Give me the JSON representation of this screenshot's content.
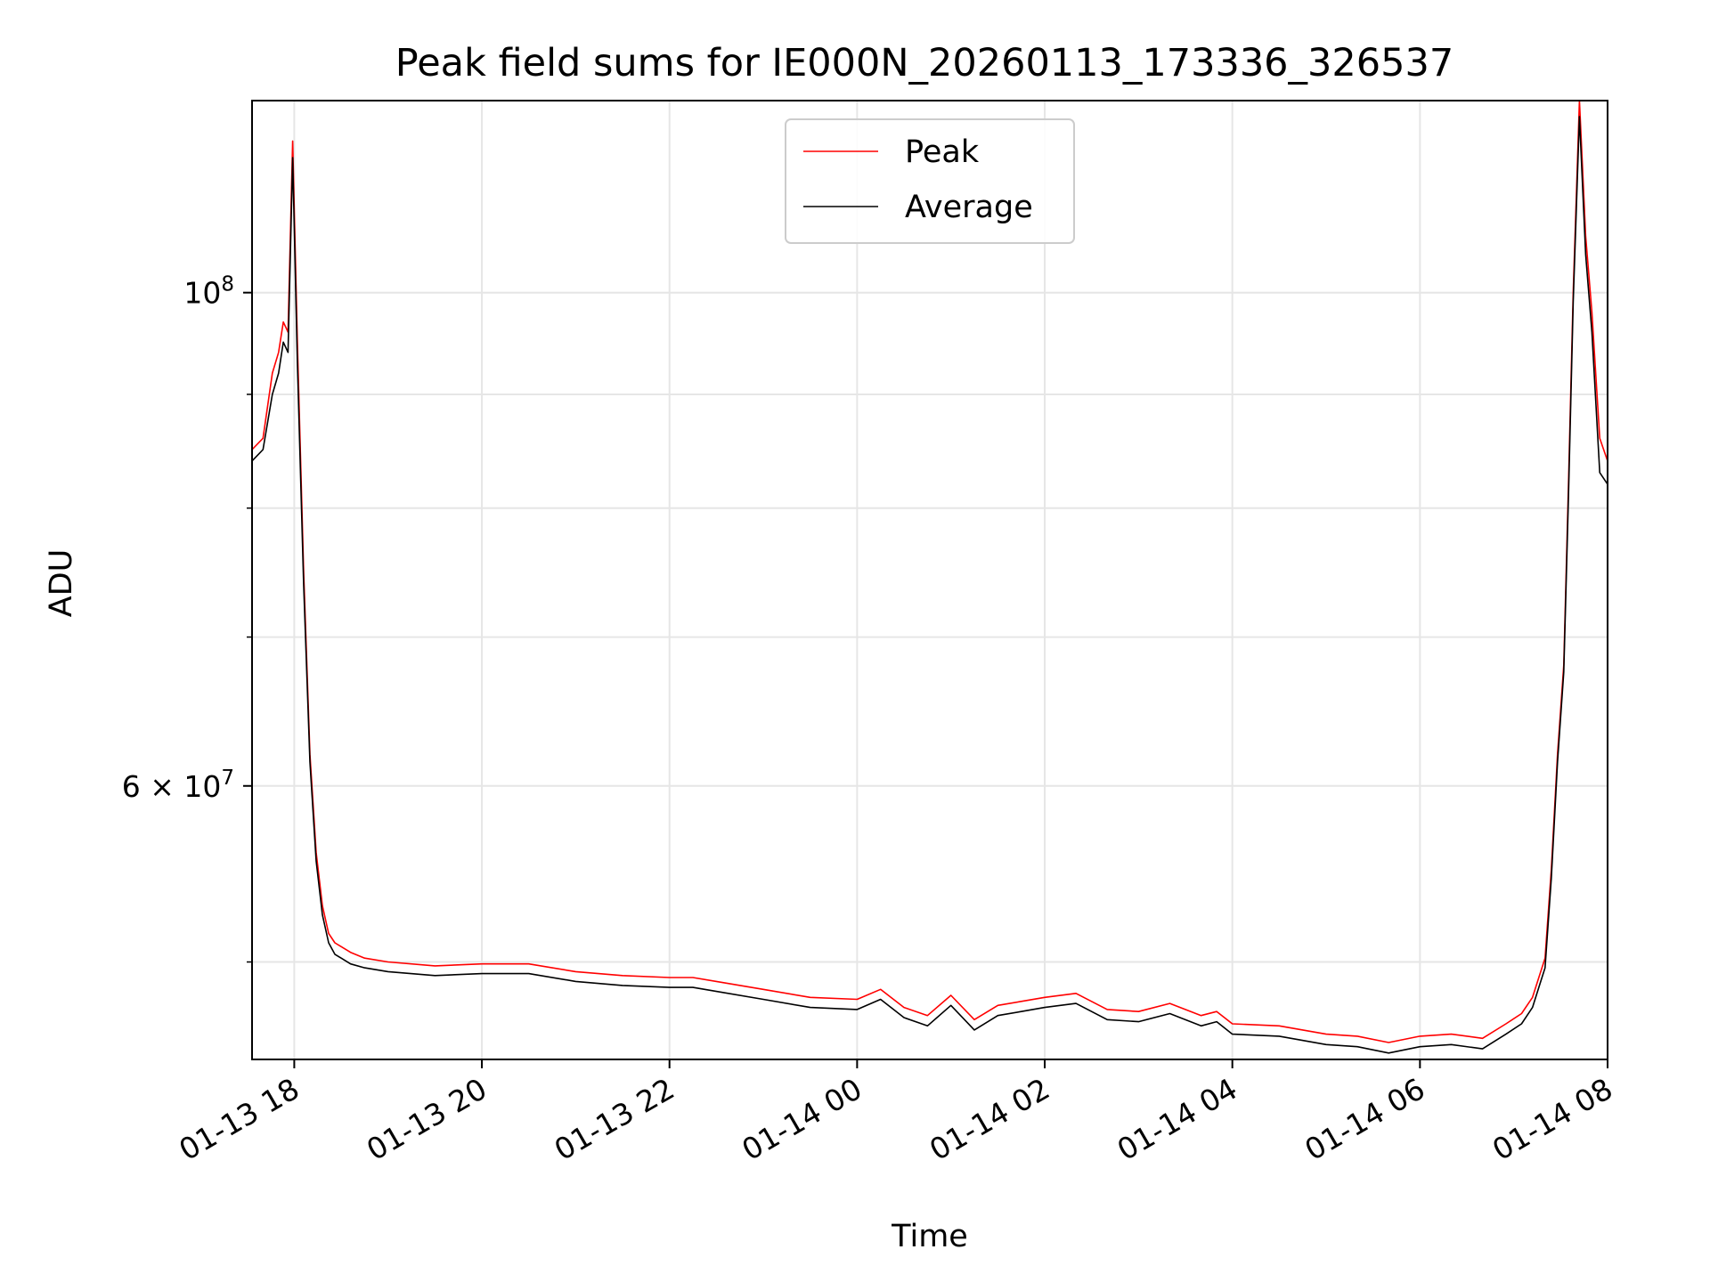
{
  "chart_data": {
    "type": "line",
    "title": "Peak field sums for IE000N_20260113_173336_326537",
    "xlabel": "Time",
    "ylabel": "ADU",
    "yscale": "log",
    "grid": true,
    "legend_position": "top-center",
    "xlim": [
      "2026-01-13 17:33",
      "2026-01-14 08:00"
    ],
    "ylim": [
      45200000,
      122000000
    ],
    "xticks": [
      {
        "value": "2026-01-13 18:00",
        "label": "01-13 18"
      },
      {
        "value": "2026-01-13 20:00",
        "label": "01-13 20"
      },
      {
        "value": "2026-01-13 22:00",
        "label": "01-13 22"
      },
      {
        "value": "2026-01-14 00:00",
        "label": "01-14 00"
      },
      {
        "value": "2026-01-14 02:00",
        "label": "01-14 02"
      },
      {
        "value": "2026-01-14 04:00",
        "label": "01-14 04"
      },
      {
        "value": "2026-01-14 06:00",
        "label": "01-14 06"
      },
      {
        "value": "2026-01-14 08:00",
        "label": "01-14 08"
      }
    ],
    "yticks_major": [
      {
        "value": 100000000,
        "base": "10",
        "exp": "8"
      },
      {
        "value": 60000000,
        "base": "6 × 10",
        "exp": "7"
      }
    ],
    "yticks_minor": [
      50000000,
      70000000,
      80000000,
      90000000
    ],
    "series": [
      {
        "name": "Peak",
        "color": "#ff0000",
        "x": [
          "2026-01-13 17:33",
          "2026-01-13 17:40",
          "2026-01-13 17:46",
          "2026-01-13 17:50",
          "2026-01-13 17:53",
          "2026-01-13 17:56",
          "2026-01-13 17:59",
          "2026-01-13 18:02",
          "2026-01-13 18:06",
          "2026-01-13 18:10",
          "2026-01-13 18:14",
          "2026-01-13 18:18",
          "2026-01-13 18:22",
          "2026-01-13 18:26",
          "2026-01-13 18:30",
          "2026-01-13 18:36",
          "2026-01-13 18:45",
          "2026-01-13 19:00",
          "2026-01-13 19:30",
          "2026-01-13 20:00",
          "2026-01-13 20:30",
          "2026-01-13 21:00",
          "2026-01-13 21:30",
          "2026-01-13 22:00",
          "2026-01-13 22:15",
          "2026-01-13 22:30",
          "2026-01-13 23:00",
          "2026-01-13 23:30",
          "2026-01-14 00:00",
          "2026-01-14 00:15",
          "2026-01-14 00:30",
          "2026-01-14 00:45",
          "2026-01-14 01:00",
          "2026-01-14 01:15",
          "2026-01-14 01:30",
          "2026-01-14 01:45",
          "2026-01-14 02:00",
          "2026-01-14 02:20",
          "2026-01-14 02:40",
          "2026-01-14 03:00",
          "2026-01-14 03:20",
          "2026-01-14 03:40",
          "2026-01-14 03:50",
          "2026-01-14 04:00",
          "2026-01-14 04:30",
          "2026-01-14 05:00",
          "2026-01-14 05:20",
          "2026-01-14 05:40",
          "2026-01-14 06:00",
          "2026-01-14 06:20",
          "2026-01-14 06:40",
          "2026-01-14 06:55",
          "2026-01-14 07:05",
          "2026-01-14 07:12",
          "2026-01-14 07:16",
          "2026-01-14 07:20",
          "2026-01-14 07:24",
          "2026-01-14 07:28",
          "2026-01-14 07:32",
          "2026-01-14 07:35",
          "2026-01-14 07:38",
          "2026-01-14 07:42",
          "2026-01-14 07:46",
          "2026-01-14 07:50",
          "2026-01-14 07:55",
          "2026-01-14 08:00"
        ],
        "y": [
          85000000,
          86000000,
          92000000,
          94000000,
          97000000,
          96000000,
          117000000,
          95000000,
          75000000,
          62000000,
          56000000,
          53000000,
          51500000,
          51000000,
          50800000,
          50500000,
          50200000,
          50000000,
          49800000,
          49900000,
          49900000,
          49500000,
          49300000,
          49200000,
          49200000,
          49000000,
          48600000,
          48200000,
          48100000,
          48600000,
          47700000,
          47300000,
          48300000,
          47100000,
          47800000,
          48000000,
          48200000,
          48400000,
          47600000,
          47500000,
          47900000,
          47300000,
          47500000,
          46900000,
          46800000,
          46400000,
          46300000,
          46000000,
          46300000,
          46400000,
          46200000,
          46900000,
          47400000,
          48200000,
          49200000,
          50200000,
          55000000,
          62000000,
          68000000,
          82000000,
          100000000,
          122000000,
          106000000,
          98000000,
          86000000,
          84000000
        ]
      },
      {
        "name": "Average",
        "color": "#000000",
        "x": [
          "2026-01-13 17:33",
          "2026-01-13 17:40",
          "2026-01-13 17:46",
          "2026-01-13 17:50",
          "2026-01-13 17:53",
          "2026-01-13 17:56",
          "2026-01-13 17:59",
          "2026-01-13 18:02",
          "2026-01-13 18:06",
          "2026-01-13 18:10",
          "2026-01-13 18:14",
          "2026-01-13 18:18",
          "2026-01-13 18:22",
          "2026-01-13 18:26",
          "2026-01-13 18:30",
          "2026-01-13 18:36",
          "2026-01-13 18:45",
          "2026-01-13 19:00",
          "2026-01-13 19:30",
          "2026-01-13 20:00",
          "2026-01-13 20:30",
          "2026-01-13 21:00",
          "2026-01-13 21:30",
          "2026-01-13 22:00",
          "2026-01-13 22:15",
          "2026-01-13 22:30",
          "2026-01-13 23:00",
          "2026-01-13 23:30",
          "2026-01-14 00:00",
          "2026-01-14 00:15",
          "2026-01-14 00:30",
          "2026-01-14 00:45",
          "2026-01-14 01:00",
          "2026-01-14 01:15",
          "2026-01-14 01:30",
          "2026-01-14 01:45",
          "2026-01-14 02:00",
          "2026-01-14 02:20",
          "2026-01-14 02:40",
          "2026-01-14 03:00",
          "2026-01-14 03:20",
          "2026-01-14 03:40",
          "2026-01-14 03:50",
          "2026-01-14 04:00",
          "2026-01-14 04:30",
          "2026-01-14 05:00",
          "2026-01-14 05:20",
          "2026-01-14 05:40",
          "2026-01-14 06:00",
          "2026-01-14 06:20",
          "2026-01-14 06:40",
          "2026-01-14 06:55",
          "2026-01-14 07:05",
          "2026-01-14 07:12",
          "2026-01-14 07:16",
          "2026-01-14 07:20",
          "2026-01-14 07:24",
          "2026-01-14 07:28",
          "2026-01-14 07:32",
          "2026-01-14 07:35",
          "2026-01-14 07:38",
          "2026-01-14 07:42",
          "2026-01-14 07:46",
          "2026-01-14 07:50",
          "2026-01-14 07:55",
          "2026-01-14 08:00"
        ],
        "y": [
          84000000,
          85000000,
          90000000,
          92000000,
          95000000,
          94000000,
          115000000,
          93000000,
          74000000,
          61500000,
          55500000,
          52500000,
          51000000,
          50400000,
          50200000,
          49900000,
          49700000,
          49500000,
          49300000,
          49400000,
          49400000,
          49000000,
          48800000,
          48700000,
          48700000,
          48500000,
          48100000,
          47700000,
          47600000,
          48100000,
          47200000,
          46800000,
          47800000,
          46600000,
          47300000,
          47500000,
          47700000,
          47900000,
          47100000,
          47000000,
          47400000,
          46800000,
          47000000,
          46400000,
          46300000,
          45900000,
          45800000,
          45500000,
          45800000,
          45900000,
          45700000,
          46400000,
          46900000,
          47700000,
          48700000,
          49700000,
          54500000,
          61500000,
          67500000,
          81000000,
          99000000,
          120000000,
          104000000,
          96000000,
          83000000,
          82000000
        ]
      }
    ]
  }
}
